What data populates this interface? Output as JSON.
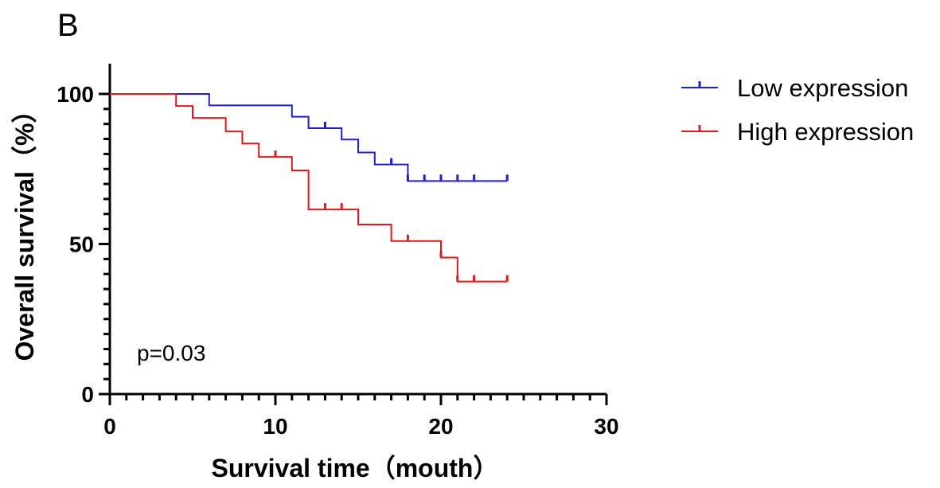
{
  "chart_data": {
    "type": "line",
    "subtype": "kaplan-meier",
    "panel_label": "B",
    "xlabel": "Survival time（mouth）",
    "ylabel": "Overall survival（%）",
    "xlim": [
      0,
      30
    ],
    "ylim": [
      0,
      100
    ],
    "xticks": [
      0,
      10,
      20,
      30
    ],
    "xtick_labels": [
      "0",
      "10",
      "20",
      "30"
    ],
    "yticks": [
      0,
      50,
      100
    ],
    "ytick_labels": [
      "0",
      "50",
      "100"
    ],
    "x_minor_step": 1,
    "y_minor_step": 5,
    "annotation": "p=0.03",
    "legend_position": "top-right",
    "series": [
      {
        "name": "Low expression",
        "color": "#1f1fcc",
        "steps": [
          [
            0,
            100
          ],
          [
            6,
            96.2
          ],
          [
            11,
            92.4
          ],
          [
            12,
            88.6
          ],
          [
            14,
            84.8
          ],
          [
            15,
            80.5
          ],
          [
            16,
            76.5
          ],
          [
            18,
            71.0
          ]
        ],
        "end_x": 24,
        "censored": [
          [
            13,
            88.6
          ],
          [
            17,
            76.5
          ],
          [
            18,
            71.0
          ],
          [
            19,
            71.0
          ],
          [
            20,
            71.0
          ],
          [
            21,
            71.0
          ],
          [
            22,
            71.0
          ],
          [
            24,
            71.0
          ]
        ]
      },
      {
        "name": "High expression",
        "color": "#e01a1a",
        "steps": [
          [
            0,
            100
          ],
          [
            4,
            96.0
          ],
          [
            5,
            92.0
          ],
          [
            7,
            87.5
          ],
          [
            8,
            83.5
          ],
          [
            9,
            79.0
          ],
          [
            11,
            74.5
          ],
          [
            12,
            61.5
          ],
          [
            15,
            56.5
          ],
          [
            17,
            51.0
          ],
          [
            20,
            45.5
          ],
          [
            21,
            37.5
          ]
        ],
        "end_x": 24,
        "censored": [
          [
            10,
            79.0
          ],
          [
            13,
            61.5
          ],
          [
            14,
            61.5
          ],
          [
            18,
            51.0
          ],
          [
            20,
            45.5
          ],
          [
            21,
            37.5
          ],
          [
            22,
            37.5
          ],
          [
            24,
            37.5
          ]
        ]
      }
    ]
  }
}
